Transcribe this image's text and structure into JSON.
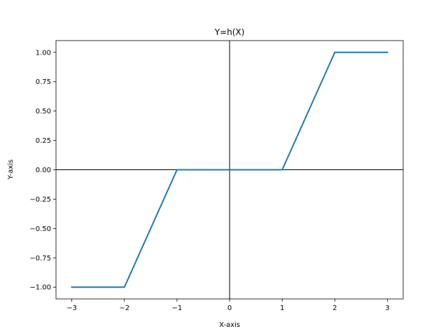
{
  "chart_data": {
    "type": "line",
    "title": "Y=h(X)",
    "xlabel": "X-axis",
    "ylabel": "Y-axis",
    "xlim": [
      -3.3,
      3.3
    ],
    "ylim": [
      -1.1,
      1.1
    ],
    "grid": false,
    "x_ticks": [
      -3,
      -2,
      -1,
      0,
      1,
      2,
      3
    ],
    "x_tick_labels": [
      "−3",
      "−2",
      "−1",
      "0",
      "1",
      "2",
      "3"
    ],
    "y_ticks": [
      -1.0,
      -0.75,
      -0.5,
      -0.25,
      0.0,
      0.25,
      0.5,
      0.75,
      1.0
    ],
    "y_tick_labels": [
      "−1.00",
      "−0.75",
      "−0.50",
      "−0.25",
      "0.00",
      "0.25",
      "0.50",
      "0.75",
      "1.00"
    ],
    "reference_lines": {
      "x": 0,
      "y": 0,
      "color": "#000000"
    },
    "series": [
      {
        "color": "#1f77b4",
        "x": [
          -3,
          -2,
          -1,
          0,
          1,
          2,
          3
        ],
        "y": [
          -1,
          -1,
          0,
          0,
          0,
          1,
          1
        ]
      }
    ]
  }
}
